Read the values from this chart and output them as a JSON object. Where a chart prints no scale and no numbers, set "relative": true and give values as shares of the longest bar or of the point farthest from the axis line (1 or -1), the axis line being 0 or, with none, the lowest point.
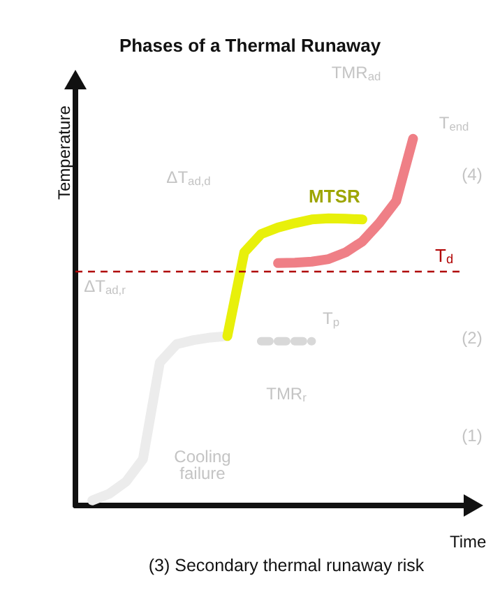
{
  "chart_data": {
    "type": "line",
    "title": "Phases of a Thermal Runaway",
    "xlabel": "Time",
    "ylabel": "Temperature",
    "relative": true,
    "marker": "none",
    "legend": false,
    "categories": [
      null,
      null,
      null,
      null,
      null,
      null,
      null,
      null,
      null,
      null,
      null,
      null,
      null,
      null,
      null,
      null,
      null,
      null,
      null,
      null,
      null,
      null,
      null,
      null
    ],
    "series": [
      {
        "color": "#ececec",
        "values": [
          null,
          0.014,
          0.032,
          0.065,
          0.126,
          0.39,
          0.44,
          0.451,
          0.458,
          0.462,
          null,
          null,
          null,
          null,
          null,
          null,
          null,
          null,
          null,
          null,
          null,
          null,
          null,
          null
        ]
      },
      {
        "name": "MTSR",
        "color": "#e8f00a",
        "values": [
          null,
          null,
          null,
          null,
          null,
          null,
          null,
          null,
          null,
          0.462,
          0.69,
          0.74,
          0.758,
          0.77,
          0.78,
          0.783,
          0.782,
          0.78,
          null,
          null,
          null,
          null,
          null,
          null
        ]
      },
      {
        "color": "#ef7f86",
        "values": [
          null,
          null,
          null,
          null,
          null,
          null,
          null,
          null,
          null,
          null,
          null,
          null,
          0.661,
          0.662,
          0.665,
          0.672,
          0.69,
          0.72,
          0.77,
          0.83,
          1.0,
          null,
          null,
          null
        ]
      },
      {
        "color": "#d8d8d8",
        "line_style": "dashed",
        "values": [
          null,
          null,
          null,
          null,
          null,
          null,
          null,
          null,
          null,
          null,
          null,
          0.448,
          0.448,
          0.448,
          0.448,
          null,
          null,
          null,
          null,
          null,
          null,
          null,
          null,
          null
        ]
      }
    ],
    "ref_lines": [
      {
        "axis": "y",
        "value": 0.639,
        "label": "T$_{d}$",
        "color": "#b00000",
        "line_style": "dashed"
      }
    ],
    "annotations": [
      "TMR$_{ad}$",
      "T$_{end}$",
      "ΔT$_{ad,d}$",
      "(4)",
      "ΔT$_{ad,r}$",
      "T$_{p}$",
      "(2)",
      "TMR$_{r}$",
      "(1)",
      "Cooling\nfailure",
      "(3) Secondary thermal runaway risk"
    ]
  }
}
